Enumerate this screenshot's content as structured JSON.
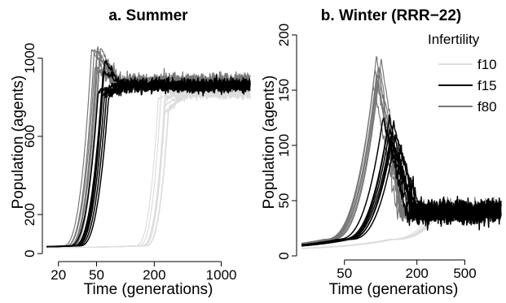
{
  "chart_data": [
    {
      "panel": "a",
      "type": "line",
      "title": "a. Summer",
      "xlabel": "Time (generations)",
      "ylabel": "Population (agents)",
      "x_scale": "log",
      "xlim": [
        15,
        2000
      ],
      "ylim": [
        -20,
        1040
      ],
      "x_ticks": [
        20,
        50,
        200,
        1000
      ],
      "x_tick_labels": [
        "20",
        "50",
        "200",
        "1000"
      ],
      "y_ticks": [
        0,
        200,
        600,
        1000
      ],
      "y_tick_labels": [
        "0",
        "200",
        "600",
        "1000"
      ],
      "series": [
        {
          "name": "f10",
          "color": "#dddddd",
          "runs": 8,
          "growth_start": 150,
          "peak_time": 260,
          "peak": 870,
          "equilibrium": 820,
          "spread": 40
        },
        {
          "name": "f15",
          "color": "#000000",
          "runs": 8,
          "growth_start": 30,
          "peak_time": 60,
          "peak": 990,
          "equilibrium": 860,
          "spread": 50
        },
        {
          "name": "f80",
          "color": "#777777",
          "runs": 8,
          "growth_start": 25,
          "peak_time": 50,
          "peak": 1060,
          "equilibrium": 880,
          "spread": 60
        }
      ]
    },
    {
      "panel": "b",
      "type": "line",
      "title": "b. Winter (RRR−22)",
      "xlabel": "Time (generations)",
      "ylabel": "Population (agents)",
      "x_scale": "log",
      "xlim": [
        22,
        1000
      ],
      "ylim": [
        0,
        200
      ],
      "x_ticks": [
        50,
        200,
        500
      ],
      "x_tick_labels": [
        "50",
        "200",
        "500"
      ],
      "y_ticks": [
        0,
        50,
        100,
        150,
        200
      ],
      "y_tick_labels": [
        "0",
        "50",
        "100",
        "150",
        "200"
      ],
      "legend": {
        "title": "Infertility",
        "position": "top-right",
        "entries": [
          "f10",
          "f15",
          "f80"
        ]
      },
      "series": [
        {
          "name": "f10",
          "color": "#dddddd",
          "runs": 8,
          "growth_start": 120,
          "peak_time": 300,
          "peak": 50,
          "equilibrium": 40,
          "spread": 10
        },
        {
          "name": "f15",
          "color": "#000000",
          "runs": 8,
          "growth_start": 50,
          "peak_time": 120,
          "peak": 130,
          "equilibrium": 40,
          "spread": 20
        },
        {
          "name": "f80",
          "color": "#777777",
          "runs": 8,
          "growth_start": 35,
          "peak_time": 90,
          "peak": 185,
          "equilibrium": 42,
          "spread": 15
        }
      ]
    }
  ]
}
